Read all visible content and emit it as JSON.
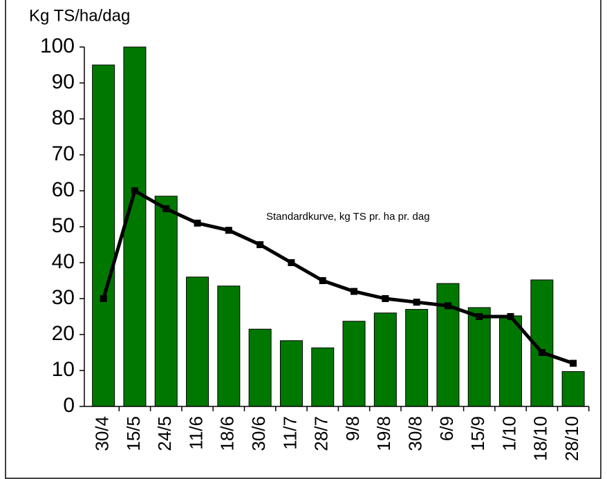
{
  "chart_data": {
    "type": "bar",
    "y_axis_label": "Kg TS/ha/dag",
    "annotation": "Standardkurve, kg TS pr. ha pr. dag",
    "categories": [
      "30/4",
      "15/5",
      "24/5",
      "11/6",
      "18/6",
      "30/6",
      "11/7",
      "28/7",
      "9/8",
      "19/8",
      "30/8",
      "6/9",
      "15/9",
      "1/10",
      "18/10",
      "28/10"
    ],
    "series": [
      {
        "type": "bar",
        "color": "#007800",
        "values": [
          95,
          100,
          58.5,
          36,
          33.5,
          21.5,
          18.3,
          16.3,
          23.7,
          26,
          27,
          34.2,
          27.5,
          25.2,
          35.2,
          9.7
        ]
      },
      {
        "type": "line",
        "color": "#000000",
        "values": [
          30,
          60,
          55,
          51,
          49,
          45,
          40,
          35,
          32,
          30,
          29,
          28,
          25,
          25,
          15,
          12
        ]
      }
    ],
    "ylim": [
      0,
      100
    ],
    "yticks": [
      0,
      10,
      20,
      30,
      40,
      50,
      60,
      70,
      80,
      90,
      100
    ],
    "grid": false
  }
}
